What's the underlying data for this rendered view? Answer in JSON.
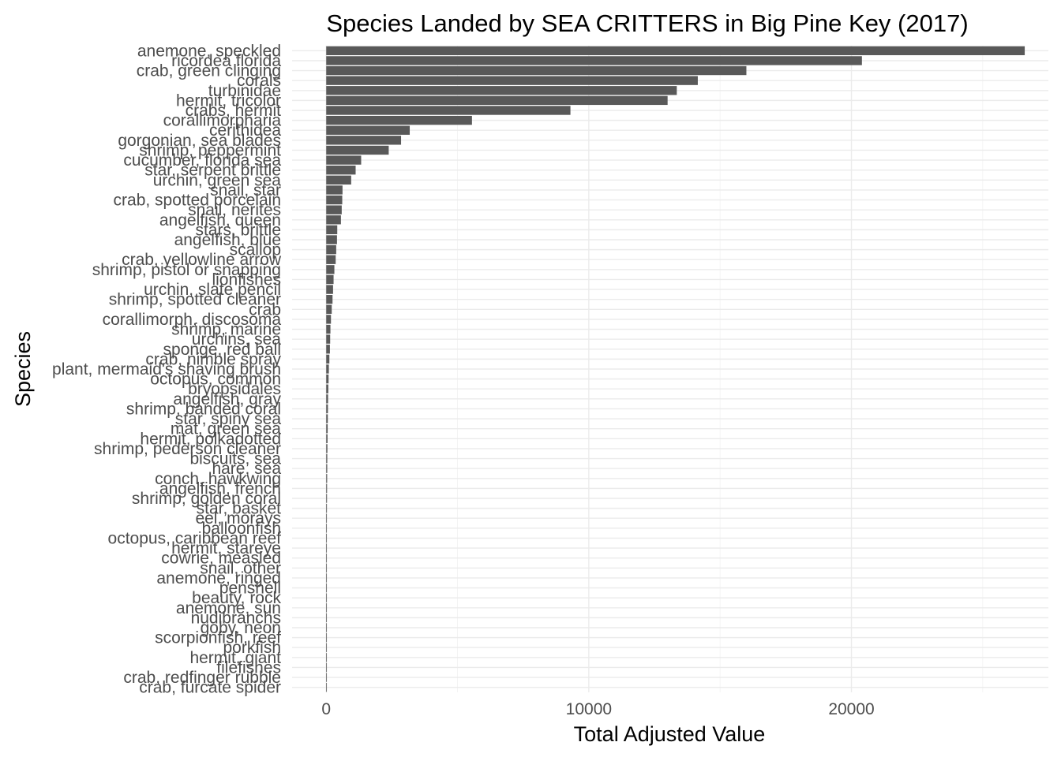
{
  "chart_data": {
    "type": "bar",
    "orientation": "horizontal",
    "title": "Species Landed by SEA CRITTERS in Big Pine Key (2017)",
    "xlabel": "Total Adjusted Value",
    "ylabel": "Species",
    "xlim": [
      -1300,
      27500
    ],
    "x_ticks": [
      0,
      10000,
      20000
    ],
    "x_tick_labels": [
      "0",
      "10000",
      "20000"
    ],
    "grid": true,
    "legend": "none",
    "bar_color": "#595959",
    "categories": [
      "anemone, speckled",
      "ricordea florida",
      "crab, green clinging",
      "corals",
      "turbinidae",
      "hermit, tricolor",
      "crabs, hermit",
      "corallimorpharia",
      "cerithidea",
      "gorgonian, sea blades",
      "shrimp, peppermint",
      "cucumber, florida sea",
      "star, serpent brittle",
      "urchin, green sea",
      "snail, star",
      "crab, spotted porcelain",
      "snail, nerites",
      "angelfish, queen",
      "stars, brittle",
      "angelfish, blue",
      "scallop",
      "crab, yellowline arrow",
      "shrimp, pistol or snapping",
      "lionfishes",
      "urchin, slate pencil",
      "shrimp, spotted cleaner",
      "crab",
      "corallimorph, discosoma",
      "shrimp, marine",
      "urchins, sea",
      "sponge, red ball",
      "crab, nimble spray",
      "plant, mermaid's shaving brush",
      "octopus, common",
      "bryopsidales",
      "angelfish, gray",
      "shrimp, banded coral",
      "star, spiny sea",
      "mat, green sea",
      "hermit, polkadotted",
      "shrimp, pederson cleaner",
      "biscuits, sea",
      "hare, sea",
      "conch, hawkwing",
      "angelfish, french",
      "shrimp, golden coral",
      "star, basket",
      "eel, morays",
      "balloonfish",
      "octopus, caribbean reef",
      "hermit, stareye",
      "cowrie, measled",
      "snail, other",
      "anemone, ringed",
      "penshell",
      "beauty, rock",
      "anemone, sun",
      "nudibranchs",
      "goby, neon",
      "scorpionfish, reef",
      "porkfish",
      "hermit, giant",
      "filefishes",
      "crab, redfinger rubble",
      "crab, furcate spider"
    ],
    "values": [
      26600,
      20400,
      16000,
      14150,
      13350,
      13000,
      9300,
      5550,
      3180,
      2850,
      2380,
      1330,
      1120,
      950,
      620,
      610,
      590,
      560,
      420,
      410,
      380,
      360,
      310,
      280,
      260,
      240,
      210,
      180,
      160,
      150,
      140,
      120,
      100,
      90,
      80,
      70,
      65,
      60,
      55,
      50,
      45,
      40,
      38,
      35,
      32,
      30,
      27,
      25,
      22,
      20,
      18,
      15,
      12,
      10,
      9,
      8,
      7,
      6,
      5,
      4,
      3,
      3,
      2,
      2,
      1
    ]
  }
}
